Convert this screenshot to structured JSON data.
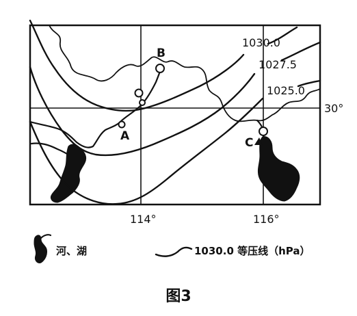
{
  "map": {
    "isobars": [
      {
        "value": "1030.0"
      },
      {
        "value": "1027.5"
      },
      {
        "value": "1025.0"
      }
    ],
    "points": [
      {
        "label": "A"
      },
      {
        "label": "B"
      },
      {
        "label": "C"
      }
    ],
    "longitude_labels": [
      "114°",
      "116°"
    ],
    "latitude_label": "30°"
  },
  "legend": {
    "river_lake_label": "河、湖",
    "isobar_label": "1030.0 等压线（hPa）"
  },
  "caption": "图3"
}
